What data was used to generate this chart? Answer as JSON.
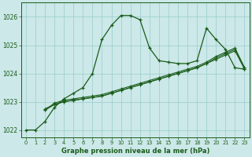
{
  "x": [
    0,
    1,
    2,
    3,
    4,
    5,
    6,
    7,
    8,
    9,
    10,
    11,
    12,
    13,
    14,
    15,
    16,
    17,
    18,
    19,
    20,
    21,
    22,
    23
  ],
  "series1": [
    1022.0,
    1022.0,
    1022.3,
    1022.8,
    1023.1,
    1023.3,
    1023.5,
    1024.0,
    1025.2,
    1025.7,
    1026.05,
    1026.05,
    1025.9,
    1024.9,
    1024.45,
    1024.4,
    1024.35,
    1024.35,
    1024.45,
    1025.6,
    1025.2,
    1024.85,
    1024.2,
    1024.15
  ],
  "series2_x": [
    2,
    3,
    4,
    5,
    6,
    7,
    8,
    9,
    10,
    11,
    12,
    13,
    14,
    15,
    16,
    17,
    18,
    19,
    20,
    21,
    22,
    23
  ],
  "series2_y": [
    1022.7,
    1022.9,
    1023.0,
    1023.05,
    1023.1,
    1023.15,
    1023.2,
    1023.3,
    1023.4,
    1023.5,
    1023.6,
    1023.7,
    1023.8,
    1023.9,
    1024.0,
    1024.1,
    1024.2,
    1024.35,
    1024.55,
    1024.7,
    1024.85,
    1024.2
  ],
  "series3_x": [
    2,
    3,
    4,
    5,
    6,
    7,
    8,
    9,
    10,
    11,
    12,
    13,
    14,
    15,
    16,
    17,
    18,
    19,
    20,
    21,
    22,
    23
  ],
  "series3_y": [
    1022.7,
    1022.95,
    1023.05,
    1023.1,
    1023.15,
    1023.2,
    1023.25,
    1023.35,
    1023.45,
    1023.55,
    1023.65,
    1023.75,
    1023.85,
    1023.95,
    1024.05,
    1024.15,
    1024.25,
    1024.4,
    1024.6,
    1024.75,
    1024.9,
    1024.2
  ],
  "series4_x": [
    2,
    3,
    4,
    5,
    6,
    7,
    8,
    9,
    10,
    11,
    12,
    13,
    14,
    15,
    16,
    17,
    18,
    19,
    20,
    21,
    22,
    23
  ],
  "series4_y": [
    1022.75,
    1022.9,
    1023.0,
    1023.05,
    1023.1,
    1023.15,
    1023.2,
    1023.3,
    1023.4,
    1023.5,
    1023.6,
    1023.7,
    1023.8,
    1023.9,
    1024.0,
    1024.1,
    1024.2,
    1024.35,
    1024.5,
    1024.65,
    1024.8,
    1024.15
  ],
  "line_color": "#1a5c1a",
  "bg_color": "#cce8e8",
  "grid_color": "#99cccc",
  "xlabel": "Graphe pression niveau de la mer (hPa)",
  "ylim": [
    1021.75,
    1026.5
  ],
  "yticks": [
    1022,
    1023,
    1024,
    1025,
    1026
  ],
  "xticks": [
    0,
    1,
    2,
    3,
    4,
    5,
    6,
    7,
    8,
    9,
    10,
    11,
    12,
    13,
    14,
    15,
    16,
    17,
    18,
    19,
    20,
    21,
    22,
    23
  ]
}
